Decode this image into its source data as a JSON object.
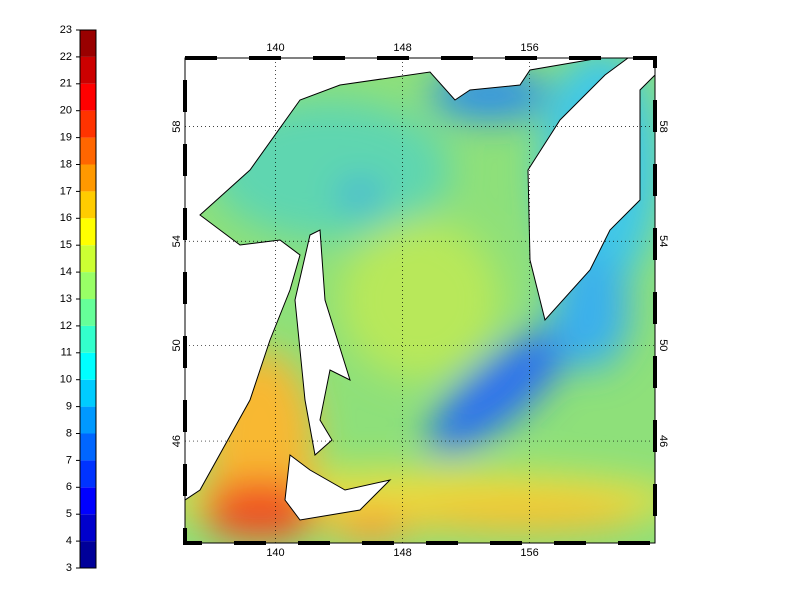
{
  "map": {
    "projection": "mercator",
    "lonlim": [
      134.3,
      163.9
    ],
    "lonticks": [
      140,
      148,
      156
    ],
    "latlim": [
      41.4,
      60.2
    ],
    "latticks": [
      46,
      50,
      54,
      58
    ],
    "grid": true,
    "colorbar": {
      "colormap": "jet",
      "lim": [
        3,
        23
      ],
      "ticks": [
        3,
        4,
        5,
        6,
        7,
        8,
        9,
        10,
        11,
        12,
        13,
        14,
        15,
        16,
        17,
        18,
        19,
        20,
        21,
        22,
        23
      ]
    }
  }
}
